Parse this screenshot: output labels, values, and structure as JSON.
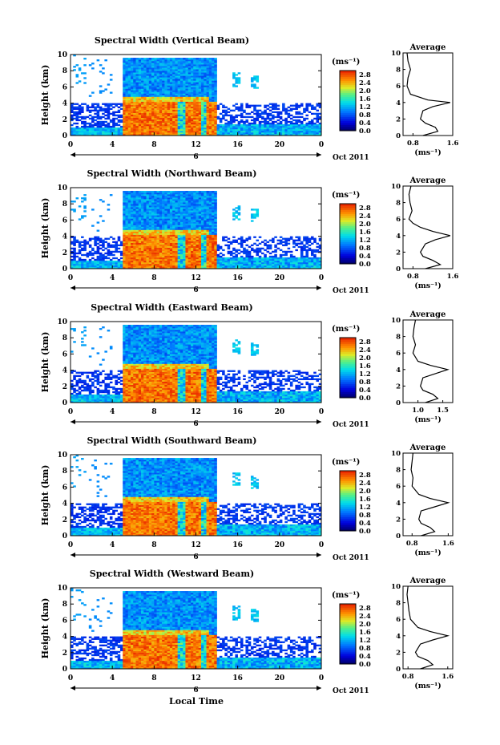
{
  "figure": {
    "x_axis_label": "Local Time",
    "y_axis_label": "Height (km)",
    "avg_title": "Average",
    "avg_unit": "(ms⁻¹)",
    "cbar_unit": "(ms⁻¹)",
    "date_label": "Oct 2011",
    "day_label": "6",
    "x_ticks": [
      "0",
      "4",
      "8",
      "12",
      "16",
      "20",
      "0"
    ],
    "y_ticks": [
      "0",
      "2",
      "4",
      "6",
      "8",
      "10"
    ],
    "cbar_ticks": [
      "0.0",
      "0.4",
      "0.8",
      "1.2",
      "1.6",
      "2.0",
      "2.4",
      "2.8"
    ]
  },
  "chart_data": [
    {
      "type": "heatmap",
      "title": "Spectral Width (Vertical Beam)",
      "xlabel": "",
      "ylabel": "Height (km)",
      "xlim": [
        0,
        24
      ],
      "ylim": [
        0,
        10
      ],
      "color_range": [
        0.0,
        3.0
      ],
      "avg_xlim": [
        0.6,
        1.6
      ],
      "avg_ticks": [
        "0.8",
        "1.6"
      ],
      "avg_profile": [
        [
          0.0,
          1.0
        ],
        [
          0.5,
          1.3
        ],
        [
          1.0,
          1.25
        ],
        [
          1.5,
          1.05
        ],
        [
          2.0,
          0.95
        ],
        [
          3.0,
          1.0
        ],
        [
          3.5,
          1.2
        ],
        [
          4.0,
          1.55
        ],
        [
          4.3,
          1.1
        ],
        [
          5.0,
          0.75
        ],
        [
          6.0,
          0.68
        ],
        [
          7.0,
          0.7
        ],
        [
          8.0,
          0.75
        ],
        [
          9.0,
          0.7
        ],
        [
          10.0,
          0.68
        ]
      ]
    },
    {
      "type": "heatmap",
      "title": "Spectral Width (Northward Beam)",
      "xlabel": "",
      "ylabel": "Height (km)",
      "xlim": [
        0,
        24
      ],
      "ylim": [
        0,
        10
      ],
      "color_range": [
        0.0,
        3.0
      ],
      "avg_xlim": [
        0.6,
        1.6
      ],
      "avg_ticks": [
        "0.8",
        "1.6"
      ],
      "avg_profile": [
        [
          0.0,
          1.05
        ],
        [
          0.5,
          1.35
        ],
        [
          1.0,
          1.2
        ],
        [
          1.5,
          1.0
        ],
        [
          2.0,
          0.95
        ],
        [
          3.0,
          1.05
        ],
        [
          3.5,
          1.25
        ],
        [
          4.0,
          1.55
        ],
        [
          4.5,
          1.2
        ],
        [
          5.0,
          0.95
        ],
        [
          5.5,
          0.8
        ],
        [
          6.0,
          0.72
        ],
        [
          7.0,
          0.78
        ],
        [
          8.0,
          0.74
        ],
        [
          9.0,
          0.72
        ],
        [
          10.0,
          0.76
        ]
      ]
    },
    {
      "type": "heatmap",
      "title": "Spectral Width (Eastward Beam)",
      "xlabel": "",
      "ylabel": "Height (km)",
      "xlim": [
        0,
        24
      ],
      "ylim": [
        0,
        10
      ],
      "color_range": [
        0.0,
        3.0
      ],
      "avg_xlim": [
        0.7,
        1.7
      ],
      "avg_ticks": [
        "1.0",
        "1.5"
      ],
      "avg_profile": [
        [
          0.0,
          1.15
        ],
        [
          0.5,
          1.4
        ],
        [
          1.0,
          1.3
        ],
        [
          1.5,
          1.1
        ],
        [
          2.0,
          1.05
        ],
        [
          3.0,
          1.1
        ],
        [
          3.5,
          1.35
        ],
        [
          4.0,
          1.6
        ],
        [
          4.5,
          1.25
        ],
        [
          5.0,
          1.0
        ],
        [
          6.0,
          0.9
        ],
        [
          7.0,
          0.95
        ],
        [
          8.0,
          0.9
        ],
        [
          9.0,
          0.92
        ],
        [
          10.0,
          0.95
        ]
      ]
    },
    {
      "type": "heatmap",
      "title": "Spectral Width (Southward Beam)",
      "xlabel": "",
      "ylabel": "Height (km)",
      "xlim": [
        0,
        24
      ],
      "ylim": [
        0,
        10
      ],
      "color_range": [
        0.0,
        3.0
      ],
      "avg_xlim": [
        0.6,
        1.7
      ],
      "avg_ticks": [
        "0.8",
        "1.6"
      ],
      "avg_profile": [
        [
          0.0,
          1.0
        ],
        [
          0.5,
          1.3
        ],
        [
          1.0,
          1.2
        ],
        [
          1.5,
          1.0
        ],
        [
          2.0,
          0.95
        ],
        [
          3.0,
          1.0
        ],
        [
          3.5,
          1.3
        ],
        [
          4.0,
          1.6
        ],
        [
          4.5,
          1.2
        ],
        [
          5.0,
          0.95
        ],
        [
          6.0,
          0.8
        ],
        [
          7.0,
          0.82
        ],
        [
          8.0,
          0.78
        ],
        [
          9.0,
          0.8
        ],
        [
          10.0,
          0.82
        ]
      ]
    },
    {
      "type": "heatmap",
      "title": "Spectral Width (Westward Beam)",
      "xlabel": "Local Time",
      "ylabel": "Height (km)",
      "xlim": [
        0,
        24
      ],
      "ylim": [
        0,
        10
      ],
      "color_range": [
        0.0,
        3.0
      ],
      "avg_xlim": [
        0.7,
        1.7
      ],
      "avg_ticks": [
        "0.8",
        "1.6"
      ],
      "avg_profile": [
        [
          0.0,
          1.05
        ],
        [
          0.5,
          1.3
        ],
        [
          1.0,
          1.2
        ],
        [
          1.5,
          1.0
        ],
        [
          2.0,
          0.95
        ],
        [
          3.0,
          1.05
        ],
        [
          3.5,
          1.3
        ],
        [
          4.0,
          1.6
        ],
        [
          4.5,
          1.25
        ],
        [
          5.0,
          1.0
        ],
        [
          6.0,
          0.85
        ],
        [
          7.0,
          0.82
        ],
        [
          8.0,
          0.8
        ],
        [
          9.0,
          0.78
        ],
        [
          10.0,
          0.8
        ]
      ]
    }
  ]
}
